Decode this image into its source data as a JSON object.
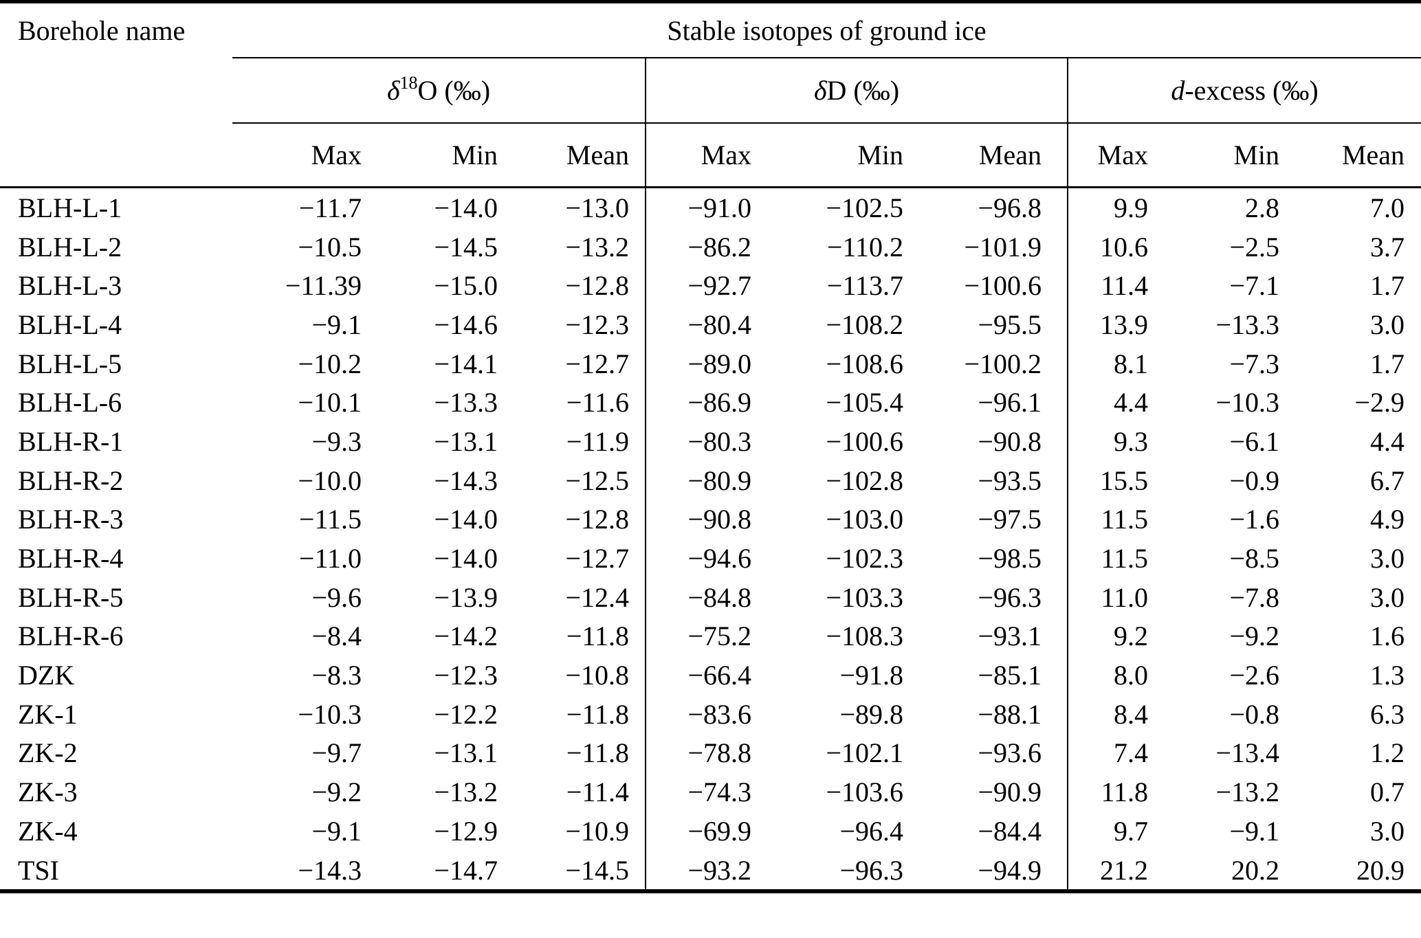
{
  "table": {
    "row_header": "Borehole name",
    "span_title": "Stable isotopes of ground ice",
    "groups": [
      {
        "symbol": "δ",
        "sup": "18",
        "rest": "O (‰)",
        "cols": [
          "Max",
          "Min",
          "Mean"
        ]
      },
      {
        "symbol": "δ",
        "sup": "",
        "rest": "D (‰)",
        "cols": [
          "Max",
          "Min",
          "Mean"
        ]
      },
      {
        "symbol": "d",
        "sup": "",
        "rest": "-excess (‰)",
        "cols": [
          "Max",
          "Min",
          "Mean"
        ]
      }
    ],
    "rows": [
      {
        "name": "BLH-L-1",
        "values": [
          "−11.7",
          "−14.0",
          "−13.0",
          "−91.0",
          "−102.5",
          "−96.8",
          "9.9",
          "2.8",
          "7.0"
        ]
      },
      {
        "name": "BLH-L-2",
        "values": [
          "−10.5",
          "−14.5",
          "−13.2",
          "−86.2",
          "−110.2",
          "−101.9",
          "10.6",
          "−2.5",
          "3.7"
        ]
      },
      {
        "name": "BLH-L-3",
        "values": [
          "−11.39",
          "−15.0",
          "−12.8",
          "−92.7",
          "−113.7",
          "−100.6",
          "11.4",
          "−7.1",
          "1.7"
        ]
      },
      {
        "name": "BLH-L-4",
        "values": [
          "−9.1",
          "−14.6",
          "−12.3",
          "−80.4",
          "−108.2",
          "−95.5",
          "13.9",
          "−13.3",
          "3.0"
        ]
      },
      {
        "name": "BLH-L-5",
        "values": [
          "−10.2",
          "−14.1",
          "−12.7",
          "−89.0",
          "−108.6",
          "−100.2",
          "8.1",
          "−7.3",
          "1.7"
        ]
      },
      {
        "name": "BLH-L-6",
        "values": [
          "−10.1",
          "−13.3",
          "−11.6",
          "−86.9",
          "−105.4",
          "−96.1",
          "4.4",
          "−10.3",
          "−2.9"
        ]
      },
      {
        "name": "BLH-R-1",
        "values": [
          "−9.3",
          "−13.1",
          "−11.9",
          "−80.3",
          "−100.6",
          "−90.8",
          "9.3",
          "−6.1",
          "4.4"
        ]
      },
      {
        "name": "BLH-R-2",
        "values": [
          "−10.0",
          "−14.3",
          "−12.5",
          "−80.9",
          "−102.8",
          "−93.5",
          "15.5",
          "−0.9",
          "6.7"
        ]
      },
      {
        "name": "BLH-R-3",
        "values": [
          "−11.5",
          "−14.0",
          "−12.8",
          "−90.8",
          "−103.0",
          "−97.5",
          "11.5",
          "−1.6",
          "4.9"
        ]
      },
      {
        "name": "BLH-R-4",
        "values": [
          "−11.0",
          "−14.0",
          "−12.7",
          "−94.6",
          "−102.3",
          "−98.5",
          "11.5",
          "−8.5",
          "3.0"
        ]
      },
      {
        "name": "BLH-R-5",
        "values": [
          "−9.6",
          "−13.9",
          "−12.4",
          "−84.8",
          "−103.3",
          "−96.3",
          "11.0",
          "−7.8",
          "3.0"
        ]
      },
      {
        "name": "BLH-R-6",
        "values": [
          "−8.4",
          "−14.2",
          "−11.8",
          "−75.2",
          "−108.3",
          "−93.1",
          "9.2",
          "−9.2",
          "1.6"
        ]
      },
      {
        "name": "DZK",
        "values": [
          "−8.3",
          "−12.3",
          "−10.8",
          "−66.4",
          "−91.8",
          "−85.1",
          "8.0",
          "−2.6",
          "1.3"
        ]
      },
      {
        "name": "ZK-1",
        "values": [
          "−10.3",
          "−12.2",
          "−11.8",
          "−83.6",
          "−89.8",
          "−88.1",
          "8.4",
          "−0.8",
          "6.3"
        ]
      },
      {
        "name": "ZK-2",
        "values": [
          "−9.7",
          "−13.1",
          "−11.8",
          "−78.8",
          "−102.1",
          "−93.6",
          "7.4",
          "−13.4",
          "1.2"
        ]
      },
      {
        "name": "ZK-3",
        "values": [
          "−9.2",
          "−13.2",
          "−11.4",
          "−74.3",
          "−103.6",
          "−90.9",
          "11.8",
          "−13.2",
          "0.7"
        ]
      },
      {
        "name": "ZK-4",
        "values": [
          "−9.1",
          "−12.9",
          "−10.9",
          "−69.9",
          "−96.4",
          "−84.4",
          "9.7",
          "−9.1",
          "3.0"
        ]
      },
      {
        "name": "TSI",
        "values": [
          "−14.3",
          "−14.7",
          "−14.5",
          "−93.2",
          "−96.3",
          "−94.9",
          "21.2",
          "20.2",
          "20.9"
        ]
      }
    ]
  },
  "chart_data": {
    "type": "table",
    "title": "Stable isotopes of ground ice",
    "columns": [
      "Borehole name",
      "d18O Max (permil)",
      "d18O Min (permil)",
      "d18O Mean (permil)",
      "dD Max (permil)",
      "dD Min (permil)",
      "dD Mean (permil)",
      "d-excess Max (permil)",
      "d-excess Min (permil)",
      "d-excess Mean (permil)"
    ],
    "rows": [
      [
        "BLH-L-1",
        -11.7,
        -14.0,
        -13.0,
        -91.0,
        -102.5,
        -96.8,
        9.9,
        2.8,
        7.0
      ],
      [
        "BLH-L-2",
        -10.5,
        -14.5,
        -13.2,
        -86.2,
        -110.2,
        -101.9,
        10.6,
        -2.5,
        3.7
      ],
      [
        "BLH-L-3",
        -11.39,
        -15.0,
        -12.8,
        -92.7,
        -113.7,
        -100.6,
        11.4,
        -7.1,
        1.7
      ],
      [
        "BLH-L-4",
        -9.1,
        -14.6,
        -12.3,
        -80.4,
        -108.2,
        -95.5,
        13.9,
        -13.3,
        3.0
      ],
      [
        "BLH-L-5",
        -10.2,
        -14.1,
        -12.7,
        -89.0,
        -108.6,
        -100.2,
        8.1,
        -7.3,
        1.7
      ],
      [
        "BLH-L-6",
        -10.1,
        -13.3,
        -11.6,
        -86.9,
        -105.4,
        -96.1,
        4.4,
        -10.3,
        -2.9
      ],
      [
        "BLH-R-1",
        -9.3,
        -13.1,
        -11.9,
        -80.3,
        -100.6,
        -90.8,
        9.3,
        -6.1,
        4.4
      ],
      [
        "BLH-R-2",
        -10.0,
        -14.3,
        -12.5,
        -80.9,
        -102.8,
        -93.5,
        15.5,
        -0.9,
        6.7
      ],
      [
        "BLH-R-3",
        -11.5,
        -14.0,
        -12.8,
        -90.8,
        -103.0,
        -97.5,
        11.5,
        -1.6,
        4.9
      ],
      [
        "BLH-R-4",
        -11.0,
        -14.0,
        -12.7,
        -94.6,
        -102.3,
        -98.5,
        11.5,
        -8.5,
        3.0
      ],
      [
        "BLH-R-5",
        -9.6,
        -13.9,
        -12.4,
        -84.8,
        -103.3,
        -96.3,
        11.0,
        -7.8,
        3.0
      ],
      [
        "BLH-R-6",
        -8.4,
        -14.2,
        -11.8,
        -75.2,
        -108.3,
        -93.1,
        9.2,
        -9.2,
        1.6
      ],
      [
        "DZK",
        -8.3,
        -12.3,
        -10.8,
        -66.4,
        -91.8,
        -85.1,
        8.0,
        -2.6,
        1.3
      ],
      [
        "ZK-1",
        -10.3,
        -12.2,
        -11.8,
        -83.6,
        -89.8,
        -88.1,
        8.4,
        -0.8,
        6.3
      ],
      [
        "ZK-2",
        -9.7,
        -13.1,
        -11.8,
        -78.8,
        -102.1,
        -93.6,
        7.4,
        -13.4,
        1.2
      ],
      [
        "ZK-3",
        -9.2,
        -13.2,
        -11.4,
        -74.3,
        -103.6,
        -90.9,
        11.8,
        -13.2,
        0.7
      ],
      [
        "ZK-4",
        -9.1,
        -12.9,
        -10.9,
        -69.9,
        -96.4,
        -84.4,
        9.7,
        -9.1,
        3.0
      ],
      [
        "TSI",
        -14.3,
        -14.7,
        -14.5,
        -93.2,
        -96.3,
        -94.9,
        21.2,
        20.2,
        20.9
      ]
    ]
  }
}
